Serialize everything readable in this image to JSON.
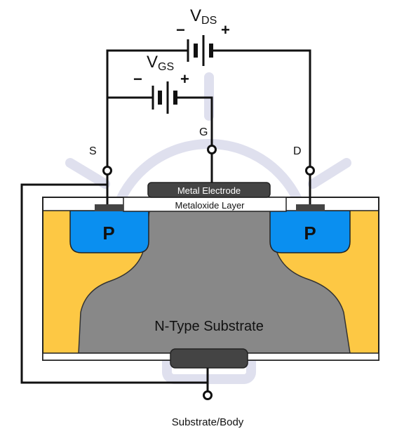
{
  "labels": {
    "vds_main": "V",
    "vds_sub": "DS",
    "vds_minus": "−",
    "vds_plus": "+",
    "vgs_main": "V",
    "vgs_sub": "GS",
    "vgs_minus": "−",
    "vgs_plus": "+",
    "gate": "G",
    "source": "S",
    "drain": "D",
    "metal_electrode": "Metal Electrode",
    "metaloxide_layer": "Metaloxide Layer",
    "p_left": "P",
    "p_right": "P",
    "substrate": "N-Type Substrate",
    "body": "Substrate/Body"
  },
  "colors": {
    "substrate_yellow": "#fdc844",
    "channel_gray": "#888888",
    "p_region_blue": "#0a8ff0",
    "electrode_dark": "#444444",
    "wire": "#111111",
    "watermark": "#dfe0ee"
  }
}
